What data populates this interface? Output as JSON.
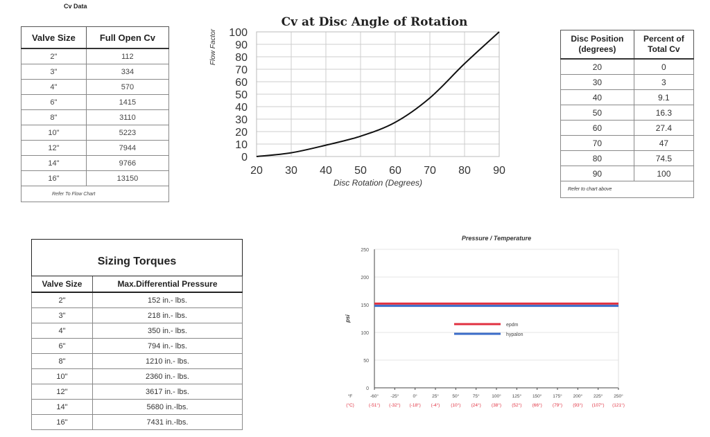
{
  "cv_data": {
    "caption": "Cv Data",
    "headers": [
      "Valve Size",
      "Full Open Cv"
    ],
    "rows": [
      [
        "2\"",
        "112"
      ],
      [
        "3\"",
        "334"
      ],
      [
        "4\"",
        "570"
      ],
      [
        "6\"",
        "1415"
      ],
      [
        "8\"",
        "3110"
      ],
      [
        "10\"",
        "5223"
      ],
      [
        "12\"",
        "7944"
      ],
      [
        "14\"",
        "9766"
      ],
      [
        "16\"",
        "13150"
      ]
    ],
    "note": "Refer To Flow Chart"
  },
  "disc_table": {
    "headers": [
      "Disc Position (degrees)",
      "Percent of Total Cv"
    ],
    "rows": [
      [
        "20",
        "0"
      ],
      [
        "30",
        "3"
      ],
      [
        "40",
        "9.1"
      ],
      [
        "50",
        "16.3"
      ],
      [
        "60",
        "27.4"
      ],
      [
        "70",
        "47"
      ],
      [
        "80",
        "74.5"
      ],
      [
        "90",
        "100"
      ]
    ],
    "note": "Refer to chart above"
  },
  "torque_table": {
    "title": "Sizing Torques",
    "headers": [
      "Valve Size",
      "Max.Differential Pressure"
    ],
    "rows": [
      [
        "2\"",
        "152 in.- lbs."
      ],
      [
        "3\"",
        "218 in.- lbs."
      ],
      [
        "4\"",
        "350 in.- lbs."
      ],
      [
        "6\"",
        "794 in.- lbs."
      ],
      [
        "8\"",
        "1210 in.- lbs."
      ],
      [
        "10\"",
        "2360 in.- lbs."
      ],
      [
        "12\"",
        "3617 in.- lbs."
      ],
      [
        "14\"",
        "5680 in.-lbs."
      ],
      [
        "16\"",
        "7431 in.-lbs."
      ]
    ]
  },
  "chart_data": [
    {
      "type": "line",
      "title": "Cv at Disc Angle of Rotation",
      "xlabel": "Disc Rotation (Degrees)",
      "ylabel": "Flow Factor",
      "xlim": [
        20,
        90
      ],
      "ylim": [
        0,
        100
      ],
      "x_ticks": [
        20,
        30,
        40,
        50,
        60,
        70,
        80,
        90
      ],
      "y_ticks": [
        0,
        10,
        20,
        30,
        40,
        50,
        60,
        70,
        80,
        90,
        100
      ],
      "grid": true,
      "series": [
        {
          "values_x": [
            20,
            30,
            40,
            50,
            60,
            70,
            80,
            90
          ],
          "values_y": [
            0,
            3,
            9.1,
            16.3,
            27.4,
            47,
            74.5,
            100
          ],
          "color": "#111111"
        }
      ]
    },
    {
      "type": "line",
      "title": "Pressure / Temperature",
      "ylabel": "psi",
      "ylim": [
        0,
        250
      ],
      "y_ticks": [
        0,
        50,
        100,
        150,
        200,
        250
      ],
      "x_ticks_f": [
        "°F",
        "-60°",
        "-25°",
        "0°",
        "25°",
        "50°",
        "75°",
        "100°",
        "125°",
        "150°",
        "175°",
        "200°",
        "225°",
        "250°"
      ],
      "x_ticks_c": [
        "(°C)",
        "(-51°)",
        "(-32°)",
        "(-18°)",
        "(-4°)",
        "(10°)",
        "(24°)",
        "(38°)",
        "(52°)",
        "(66°)",
        "(79°)",
        "(93°)",
        "(107°)",
        "(121°)"
      ],
      "grid": true,
      "legend_placement": "center",
      "series": [
        {
          "name": "epdm",
          "color": "#e03040",
          "values_y": [
            152,
            152,
            152,
            152,
            152,
            152,
            152,
            152,
            152,
            152,
            152,
            152,
            152
          ]
        },
        {
          "name": "hypalon",
          "color": "#3a6cc8",
          "values_y": [
            148,
            148,
            148,
            148,
            148,
            148,
            148,
            148,
            148,
            148,
            148,
            148,
            148
          ]
        }
      ]
    }
  ]
}
